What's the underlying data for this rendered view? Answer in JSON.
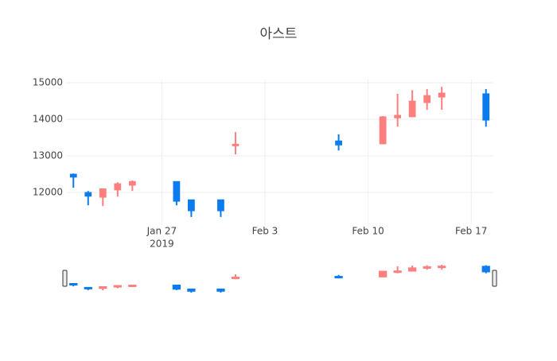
{
  "chart_data": {
    "type": "candlestick",
    "title": "아스트",
    "x": [
      "2019-01-21",
      "2019-01-22",
      "2019-01-23",
      "2019-01-24",
      "2019-01-25",
      "2019-01-28",
      "2019-01-29",
      "2019-01-31",
      "2019-02-01",
      "2019-02-08",
      "2019-02-11",
      "2019-02-12",
      "2019-02-13",
      "2019-02-14",
      "2019-02-15",
      "2019-02-18"
    ],
    "open": [
      12500,
      12000,
      11870,
      12070,
      12200,
      12300,
      11800,
      11800,
      13280,
      13410,
      13330,
      14040,
      14070,
      14460,
      14610,
      14700
    ],
    "high": [
      12520,
      12040,
      12110,
      12280,
      12330,
      12300,
      11800,
      11800,
      13650,
      13590,
      14090,
      14700,
      14800,
      14830,
      14890,
      14830
    ],
    "low": [
      12130,
      11650,
      11630,
      11890,
      12040,
      11650,
      11330,
      11330,
      13040,
      13150,
      13330,
      13800,
      14070,
      14260,
      14260,
      13800
    ],
    "close": [
      12420,
      11900,
      12100,
      12240,
      12300,
      11760,
      11500,
      11500,
      13320,
      13300,
      14070,
      14110,
      14500,
      14650,
      14720,
      13980
    ],
    "increasing_color": "#ff7f7f",
    "decreasing_color": "#0a7cf0",
    "xlim": [
      "2019-01-20T12:00",
      "2019-02-18T12:00"
    ],
    "xticks": [
      {
        "value": "2019-01-27",
        "label": "Jan 27"
      },
      {
        "value": "2019-02-03",
        "label": "Feb 3"
      },
      {
        "value": "2019-02-10",
        "label": "Feb 10"
      },
      {
        "value": "2019-02-17",
        "label": "Feb 17"
      }
    ],
    "xtick_year_label": "2019",
    "ylim": [
      11110,
      15090
    ],
    "yticks": [
      12000,
      13000,
      14000,
      15000
    ],
    "grid": true,
    "rangeslider": true
  }
}
